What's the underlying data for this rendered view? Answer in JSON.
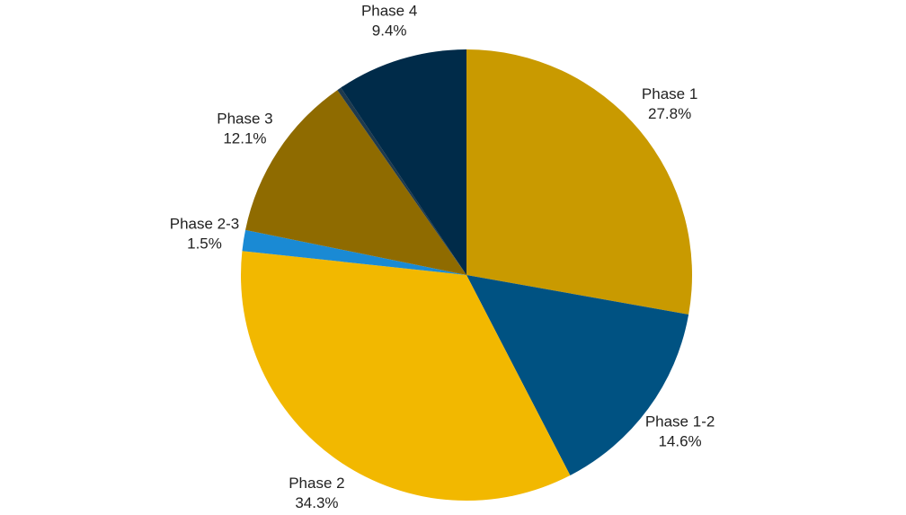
{
  "chart_data": {
    "type": "pie",
    "categories": [
      "Phase 1",
      "Phase 1-2",
      "Phase 2",
      "Phase 2-3",
      "Phase 3",
      null,
      "Phase 4"
    ],
    "values": [
      27.8,
      14.6,
      34.3,
      1.5,
      12.1,
      0.3,
      9.4
    ],
    "value_labels": [
      "27.8%",
      "14.6%",
      "34.3%",
      "1.5%",
      "12.1%",
      null,
      "9.4%"
    ],
    "colors": [
      "#c99a00",
      "#005282",
      "#f2b800",
      "#1a8ad4",
      "#8f6b00",
      "#1f3a4d",
      "#002b49"
    ]
  }
}
